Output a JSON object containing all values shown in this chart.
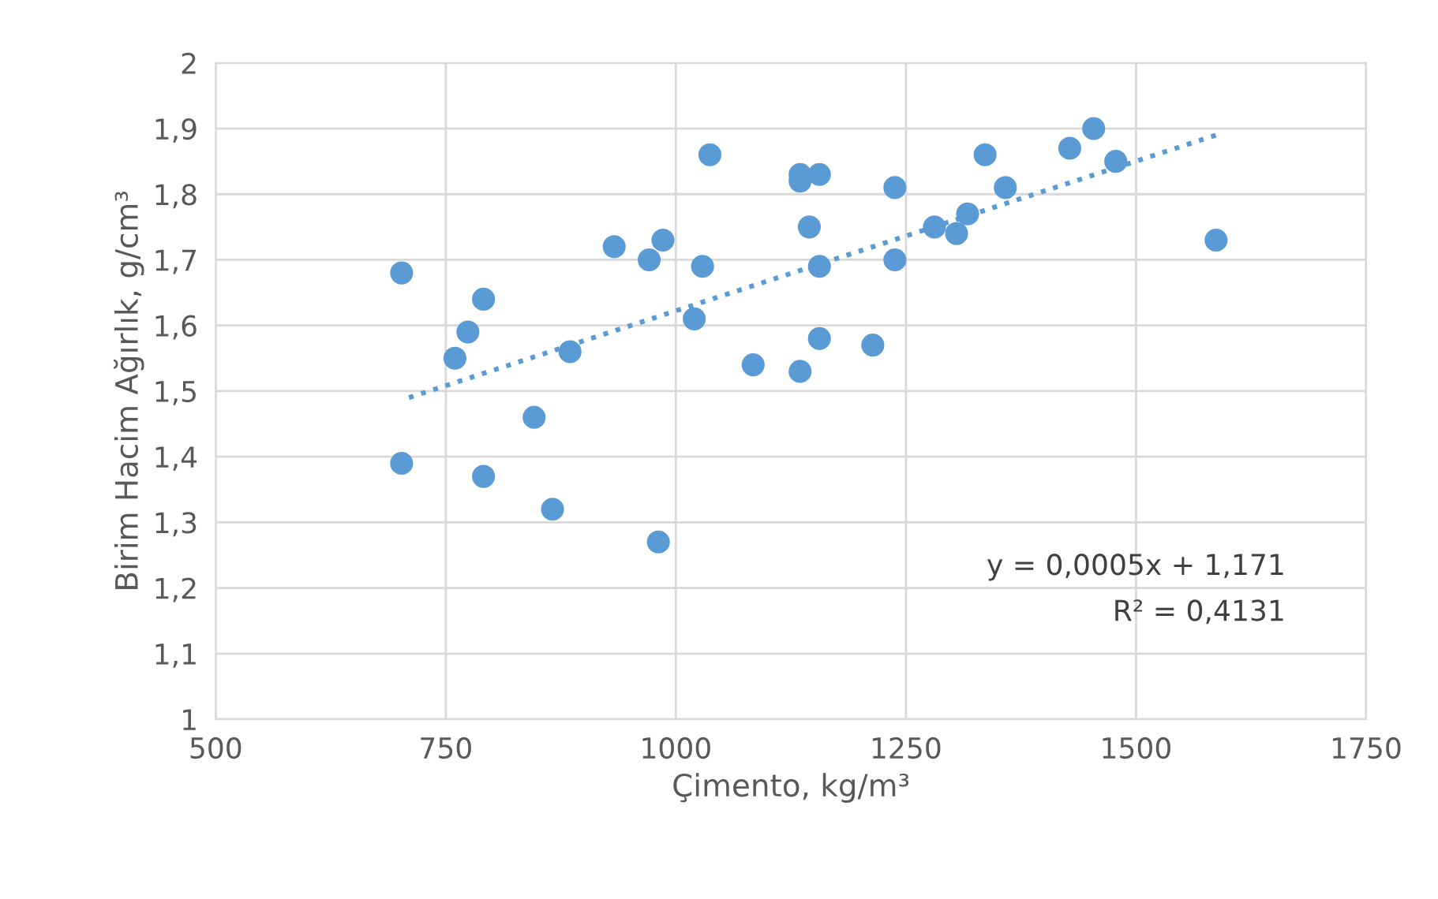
{
  "chart_data": {
    "type": "scatter",
    "xlabel": "Çimento, kg/m³",
    "ylabel": "Birim Hacim Ağırlık, g/cm³",
    "xlim": [
      500,
      1750
    ],
    "xticks": [
      500,
      750,
      1000,
      1250,
      1500,
      1750
    ],
    "ylim": [
      1,
      2
    ],
    "yticks": [
      1,
      {
        "value": 1.1,
        "label": "1,1"
      },
      {
        "value": 1.2,
        "label": "1,2"
      },
      {
        "value": 1.3,
        "label": "1,3"
      },
      {
        "value": 1.4,
        "label": "1,4"
      },
      {
        "value": 1.5,
        "label": "1,5"
      },
      {
        "value": 1.6,
        "label": "1,6"
      },
      {
        "value": 1.7,
        "label": "1,7"
      },
      {
        "value": 1.8,
        "label": "1,8"
      },
      {
        "value": 1.9,
        "label": "1,9"
      },
      2
    ],
    "grid": true,
    "marker": "circle",
    "series": [
      {
        "color": "#5b9bd5",
        "x": [
          702,
          702,
          760,
          774,
          791,
          791,
          846,
          866,
          885,
          933,
          971,
          986,
          981,
          1020,
          1029,
          1037,
          1084,
          1135,
          1135,
          1135,
          1145,
          1156,
          1156,
          1156,
          1214,
          1238,
          1238,
          1281,
          1305,
          1317,
          1336,
          1358,
          1428,
          1454,
          1478,
          1587
        ],
        "values": [
          1.68,
          1.39,
          1.55,
          1.59,
          1.64,
          1.37,
          1.46,
          1.32,
          1.56,
          1.72,
          1.7,
          1.73,
          1.27,
          1.61,
          1.69,
          1.86,
          1.54,
          1.83,
          1.82,
          1.53,
          1.75,
          1.83,
          1.69,
          1.58,
          1.57,
          1.81,
          1.7,
          1.75,
          1.74,
          1.77,
          1.86,
          1.81,
          1.87,
          1.9,
          1.85,
          1.73
        ]
      },
      {
        "type": "line",
        "color": "#5b9bd5",
        "line_style": "dotted",
        "marker": "none",
        "x": [
          710,
          1587
        ],
        "values": [
          1.49,
          1.89
        ]
      }
    ],
    "annotations": [
      "y = 0,0005x + 1,171",
      "R² = 0,4131"
    ]
  }
}
